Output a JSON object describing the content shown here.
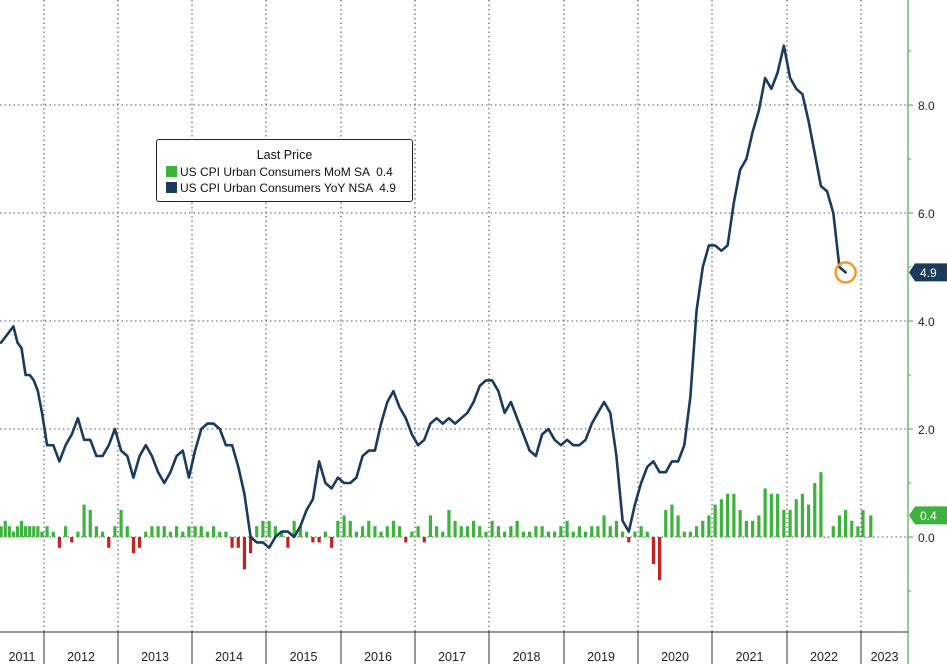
{
  "chart_data": {
    "type": "line",
    "title": "",
    "legend": {
      "title": "Last Price",
      "placement": "top-left",
      "entries": [
        {
          "name": "US CPI Urban Consumers MoM SA",
          "value": "0.4",
          "color": "#3db33d"
        },
        {
          "name": "US CPI Urban Consumers YoY NSA",
          "value": "4.9",
          "color": "#1b3a5c"
        }
      ]
    },
    "x_ticks": [
      "2011",
      "2012",
      "2013",
      "2014",
      "2015",
      "2016",
      "2017",
      "2018",
      "2019",
      "2020",
      "2021",
      "2022",
      "2023"
    ],
    "y_ticks": [
      "0.0",
      "2.0",
      "4.0",
      "6.0",
      "8.0"
    ],
    "ylim": [
      -1.1,
      9.8
    ],
    "grid": true,
    "last_value_labels": [
      {
        "series": "yoy",
        "text": "4.9",
        "color": "#1b3a5c"
      },
      {
        "series": "mom",
        "text": "0.4",
        "color": "#3db33d"
      }
    ],
    "yoy_series": {
      "name": "US CPI Urban Consumers YoY NSA",
      "start": "2011-01",
      "values": [
        3.6,
        3.6,
        3.7,
        3.8,
        3.9,
        3.6,
        3.5,
        3.0,
        3.0,
        2.9,
        2.7,
        2.3,
        1.7,
        1.7,
        1.4,
        1.7,
        1.9,
        2.2,
        1.8,
        1.8,
        1.5,
        1.5,
        1.7,
        2.0,
        1.6,
        1.5,
        1.1,
        1.5,
        1.7,
        1.5,
        1.2,
        1.0,
        1.2,
        1.5,
        1.6,
        1.1,
        1.6,
        2.0,
        2.1,
        2.1,
        2.0,
        1.7,
        1.7,
        1.3,
        0.8,
        0.0,
        -0.1,
        -0.1,
        -0.2,
        0.0,
        0.1,
        0.1,
        0.0,
        0.2,
        0.5,
        0.7,
        1.4,
        1.0,
        0.9,
        1.1,
        1.0,
        1.0,
        1.1,
        1.5,
        1.6,
        1.6,
        2.1,
        2.5,
        2.7,
        2.4,
        2.2,
        1.9,
        1.7,
        1.8,
        2.1,
        2.2,
        2.1,
        2.2,
        2.1,
        2.2,
        2.3,
        2.5,
        2.8,
        2.9,
        2.9,
        2.7,
        2.3,
        2.5,
        2.2,
        1.9,
        1.6,
        1.5,
        1.9,
        2.0,
        1.8,
        1.7,
        1.8,
        1.7,
        1.7,
        1.8,
        2.1,
        2.3,
        2.5,
        2.3,
        1.5,
        0.3,
        0.1,
        0.6,
        1.0,
        1.3,
        1.4,
        1.2,
        1.2,
        1.4,
        1.4,
        1.7,
        2.6,
        4.2,
        5.0,
        5.4,
        5.4,
        5.3,
        5.4,
        6.2,
        6.8,
        7.0,
        7.5,
        7.9,
        8.5,
        8.3,
        8.6,
        9.1,
        8.5,
        8.3,
        8.2,
        7.7,
        7.1,
        6.5,
        6.4,
        6.0,
        5.0,
        4.9
      ]
    },
    "mom_series": {
      "name": "US CPI Urban Consumers MoM SA",
      "start": "2011-01",
      "values": [
        0.3,
        0.2,
        0.3,
        0.2,
        0.1,
        0.2,
        0.3,
        0.2,
        0.2,
        0.2,
        0.2,
        0.1,
        0.2,
        0.1,
        -0.2,
        0.2,
        -0.1,
        0.1,
        0.6,
        0.5,
        0.2,
        0.1,
        -0.2,
        0.2,
        0.5,
        0.2,
        -0.3,
        -0.2,
        0.1,
        0.2,
        0.2,
        0.2,
        0.1,
        0.2,
        0.1,
        0.2,
        0.2,
        0.2,
        0.1,
        0.2,
        0.1,
        0.1,
        -0.2,
        -0.2,
        -0.6,
        -0.3,
        0.2,
        0.3,
        0.3,
        0.2,
        0.1,
        -0.2,
        0.3,
        0.2,
        0.1,
        -0.1,
        -0.1,
        0.1,
        -0.2,
        0.3,
        0.4,
        0.3,
        0.1,
        0.2,
        0.3,
        0.2,
        0.1,
        0.2,
        0.3,
        0.2,
        -0.1,
        0.1,
        0.2,
        -0.1,
        0.4,
        0.2,
        0.1,
        0.5,
        0.3,
        0.2,
        0.2,
        0.3,
        0.2,
        0.1,
        0.3,
        0.2,
        0.1,
        0.2,
        0.3,
        0.1,
        0.1,
        0.2,
        0.2,
        0.1,
        0.1,
        0.2,
        0.3,
        0.1,
        0.2,
        0.1,
        0.2,
        0.2,
        0.4,
        0.2,
        0.3,
        0.1,
        -0.1,
        0.1,
        0.2,
        0.1,
        -0.5,
        -0.8,
        0.5,
        0.6,
        0.4,
        0.1,
        0.1,
        0.2,
        0.3,
        0.4,
        0.6,
        0.7,
        0.8,
        0.8,
        0.5,
        0.3,
        0.3,
        0.4,
        0.9,
        0.8,
        0.8,
        0.5,
        0.5,
        0.7,
        0.8,
        0.6,
        1.0,
        1.2,
        0.0,
        0.2,
        0.4,
        0.5,
        0.3,
        0.2,
        0.5,
        0.0,
        0.4
      ]
    },
    "colors": {
      "yoy": "#1b3a5c",
      "mom_pos": "#3db33d",
      "mom_neg": "#c8201e",
      "grid": "#555555",
      "axis": "#4fa84f",
      "highlight": "#f39a2b"
    }
  }
}
